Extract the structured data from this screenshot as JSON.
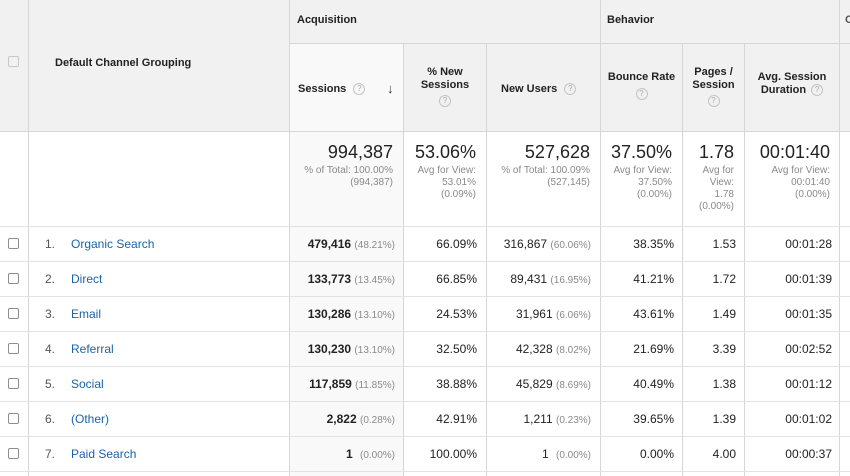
{
  "header": {
    "acquisition_label": "Acquisition",
    "behavior_label": "Behavior",
    "next_group_label": "C",
    "dimension_label": "Default Channel Grouping",
    "columns": {
      "sessions": "Sessions",
      "pct_new_sessions": "% New Sessions",
      "new_users": "New Users",
      "bounce_rate": "Bounce Rate",
      "pages_session": "Pages / Session",
      "avg_session_duration": "Avg. Session Duration"
    },
    "help_glyph": "?",
    "sort_arrow": "↓"
  },
  "totals": {
    "sessions": {
      "value": "994,387",
      "sub": "% of Total: 100.00% (994,387)"
    },
    "pct_new_sessions": {
      "value": "53.06%",
      "sub": "Avg for View: 53.01% (0.09%)"
    },
    "new_users": {
      "value": "527,628",
      "sub": "% of Total: 100.09% (527,145)"
    },
    "bounce_rate": {
      "value": "37.50%",
      "sub": "Avg for View: 37.50% (0.00%)"
    },
    "pages_session": {
      "value": "1.78",
      "sub": "Avg for View: 1.78 (0.00%)"
    },
    "avg_session_duration": {
      "value": "00:01:40",
      "sub": "Avg for View: 00:01:40 (0.00%)"
    }
  },
  "rows": [
    {
      "index": "1.",
      "channel": "Organic Search",
      "sessions": "479,416",
      "sessions_pct": "(48.21%)",
      "pct_new": "66.09%",
      "new_users": "316,867",
      "new_users_pct": "(60.06%)",
      "bounce": "38.35%",
      "pages": "1.53",
      "duration": "00:01:28"
    },
    {
      "index": "2.",
      "channel": "Direct",
      "sessions": "133,773",
      "sessions_pct": "(13.45%)",
      "pct_new": "66.85%",
      "new_users": "89,431",
      "new_users_pct": "(16.95%)",
      "bounce": "41.21%",
      "pages": "1.72",
      "duration": "00:01:39"
    },
    {
      "index": "3.",
      "channel": "Email",
      "sessions": "130,286",
      "sessions_pct": "(13.10%)",
      "pct_new": "24.53%",
      "new_users": "31,961",
      "new_users_pct": "(6.06%)",
      "bounce": "43.61%",
      "pages": "1.49",
      "duration": "00:01:35"
    },
    {
      "index": "4.",
      "channel": "Referral",
      "sessions": "130,230",
      "sessions_pct": "(13.10%)",
      "pct_new": "32.50%",
      "new_users": "42,328",
      "new_users_pct": "(8.02%)",
      "bounce": "21.69%",
      "pages": "3.39",
      "duration": "00:02:52"
    },
    {
      "index": "5.",
      "channel": "Social",
      "sessions": "117,859",
      "sessions_pct": "(11.85%)",
      "pct_new": "38.88%",
      "new_users": "45,829",
      "new_users_pct": "(8.69%)",
      "bounce": "40.49%",
      "pages": "1.38",
      "duration": "00:01:12"
    },
    {
      "index": "6.",
      "channel": "(Other)",
      "sessions": "2,822",
      "sessions_pct": "(0.28%)",
      "pct_new": "42.91%",
      "new_users": "1,211",
      "new_users_pct": "(0.23%)",
      "bounce": "39.65%",
      "pages": "1.39",
      "duration": "00:01:02"
    },
    {
      "index": "7.",
      "channel": "Paid Search",
      "sessions": "1",
      "sessions_pct": "(0.00%)",
      "pct_new": "100.00%",
      "new_users": "1",
      "new_users_pct": "(0.00%)",
      "bounce": "0.00%",
      "pages": "4.00",
      "duration": "00:00:37"
    }
  ],
  "colors": {
    "header_bg": "#f1f1f1",
    "sorted_col_bg": "#f9f9f9",
    "link": "#1a63a8",
    "border": "#d6d6d6"
  },
  "icons": {
    "help": "question-circle-icon",
    "sort": "arrow-down-icon",
    "select": "checkbox-icon"
  }
}
